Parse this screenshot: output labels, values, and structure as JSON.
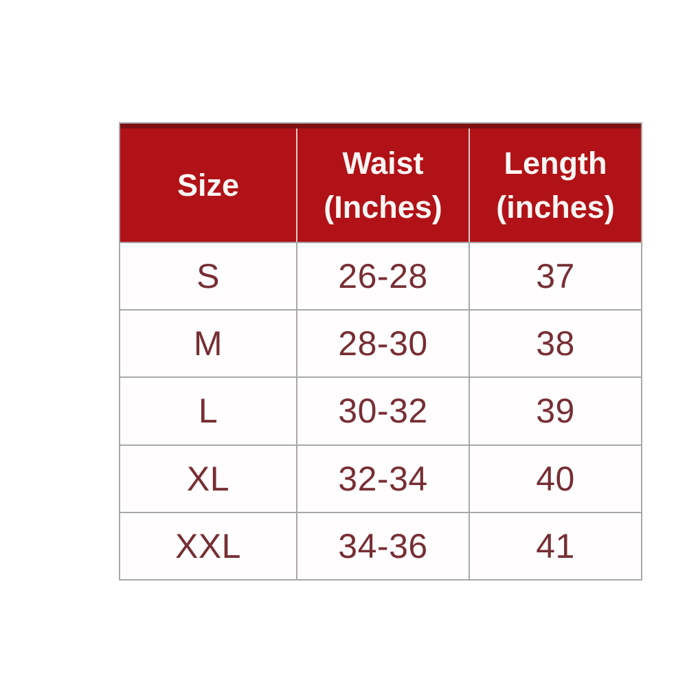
{
  "chart_data": {
    "type": "table",
    "columns": [
      "Size",
      "Waist (Inches)",
      "Length (inches)"
    ],
    "rows": [
      [
        "S",
        "26-28",
        "37"
      ],
      [
        "M",
        "28-30",
        "38"
      ],
      [
        "L",
        "30-32",
        "39"
      ],
      [
        "XL",
        "32-34",
        "40"
      ],
      [
        "XXL",
        "34-36",
        "41"
      ]
    ]
  },
  "header_display": [
    {
      "line1": "Size",
      "line2": ""
    },
    {
      "line1": "Waist",
      "line2": "(Inches)"
    },
    {
      "line1": "Length",
      "line2": "(inches)"
    }
  ],
  "colors": {
    "header_bg": "#b01218",
    "header_top_strip": "#7c1013",
    "header_text": "#fdf6f3",
    "body_text": "#772e35",
    "border": "#a8a8a8",
    "header_divider": "#d8cdca",
    "page_bg": "#ffffff"
  }
}
